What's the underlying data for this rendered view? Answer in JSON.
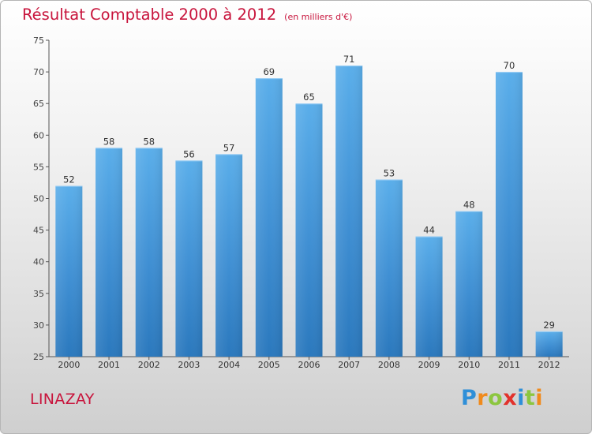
{
  "chart_data": {
    "type": "bar",
    "title": "Résultat Comptable 2000 à 2012",
    "subtitle": "(en milliers d'€)",
    "categories": [
      "2000",
      "2001",
      "2002",
      "2003",
      "2004",
      "2005",
      "2006",
      "2007",
      "2008",
      "2009",
      "2010",
      "2011",
      "2012"
    ],
    "values": [
      52,
      58,
      58,
      56,
      57,
      69,
      65,
      71,
      53,
      44,
      48,
      70,
      29
    ],
    "ylim": [
      25,
      75
    ],
    "yticks": [
      25,
      30,
      35,
      40,
      45,
      50,
      55,
      60,
      65,
      70,
      75
    ],
    "grid": false,
    "bar_color": "#4f9fe0"
  },
  "commune": "LINAZAY",
  "logo": {
    "letters": [
      "P",
      "r",
      "o",
      "x",
      "i",
      "t",
      "i"
    ],
    "colors": [
      "#2f8fd8",
      "#f08a1c",
      "#8cc63f",
      "#e2322c",
      "#2f8fd8",
      "#8cc63f",
      "#f08a1c"
    ]
  }
}
